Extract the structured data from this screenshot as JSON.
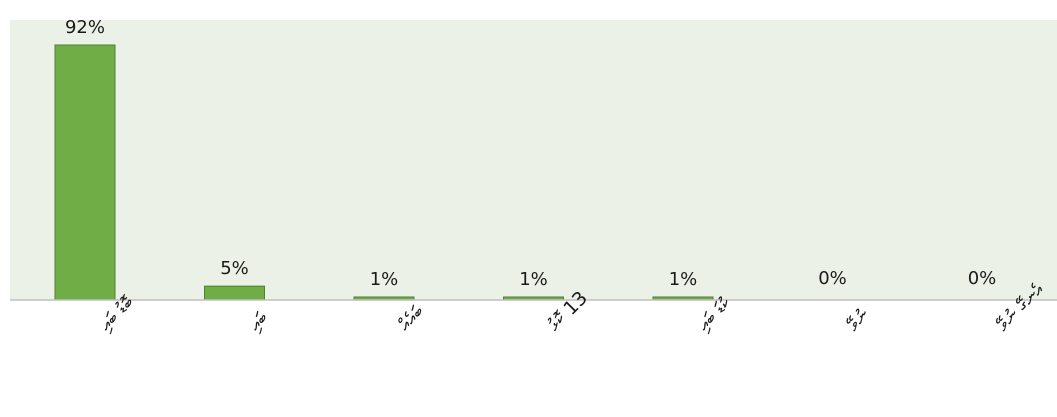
{
  "chart_data": {
    "type": "bar",
    "categories": [
      "ބޮޑު ބައި",
      "ބައި",
      "ބައެއް",
      "13 ކޮޅު",
      "ކުޑަ ބައި",
      "ނުވޭ",
      "އެނގޭ ނުވޭ"
    ],
    "values": [
      92,
      5,
      1,
      1,
      1,
      0,
      0
    ],
    "value_labels": [
      "92%",
      "5%",
      "1%",
      "1%",
      "1%",
      "0%",
      "0%"
    ],
    "ylim": [
      0,
      100
    ],
    "grid": false,
    "legend": "none",
    "title": "",
    "xlabel": "",
    "ylabel": "",
    "colors": {
      "bar_fill": "#70ad47",
      "bar_stroke": "#507e32",
      "plot_background": "#ebf1e6",
      "baseline": "#bfbfbf"
    }
  }
}
